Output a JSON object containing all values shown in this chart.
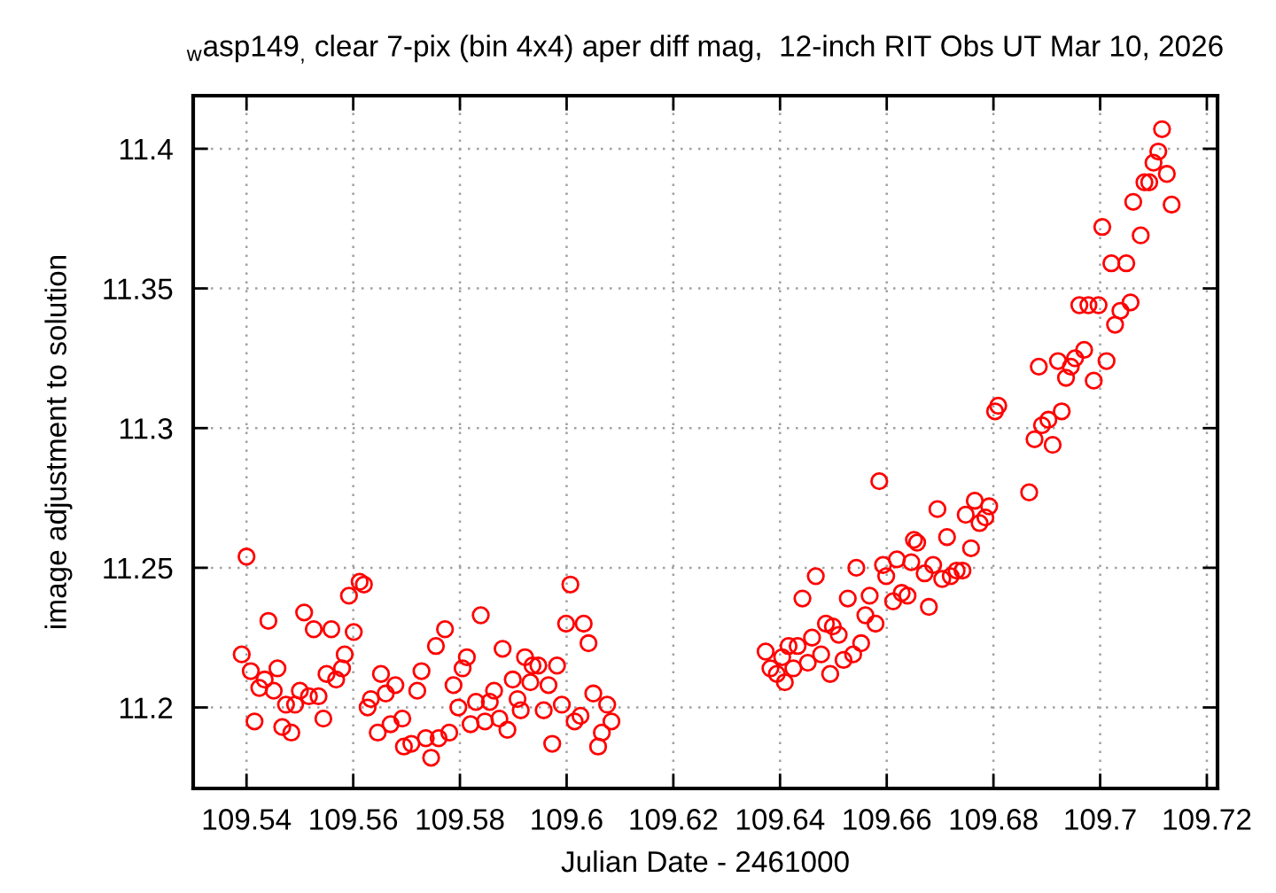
{
  "chart_data": {
    "type": "scatter",
    "title": "$_{w}$asp149$_{,}$ clear 7-pix (bin 4x4) aper diff mag,  12-inch RIT Obs UT Mar 10, 2026",
    "xlabel": "Julian Date - 2461000",
    "ylabel": "image adjustment to solution",
    "x": [
      109.54,
      109.5612,
      109.562,
      109.5592,
      109.5441,
      109.5508,
      109.5526,
      109.5559,
      109.5601,
      109.5391,
      109.5584,
      109.5408,
      109.5458,
      109.5434,
      109.5424,
      109.5451,
      109.555,
      109.5579,
      109.5568,
      109.55,
      109.5517,
      109.5535,
      109.5474,
      109.5491,
      109.5415,
      109.5467,
      109.5484,
      109.5544,
      109.5652,
      109.5679,
      109.5661,
      109.5633,
      109.5627,
      109.567,
      109.5646,
      109.5692,
      109.572,
      109.6007,
      109.5839,
      109.5772,
      109.5755,
      109.5999,
      109.6032,
      109.6041,
      109.588,
      109.5813,
      109.5805,
      109.5728,
      109.5922,
      109.5936,
      109.5947,
      109.5982,
      109.5899,
      109.5932,
      109.5966,
      109.5788,
      109.5864,
      109.5908,
      109.583,
      109.5856,
      109.5797,
      109.5991,
      109.605,
      109.6076,
      109.5914,
      109.5957,
      109.6026,
      109.6015,
      109.6084,
      109.582,
      109.5847,
      109.5874,
      109.5889,
      109.578,
      109.576,
      109.5736,
      109.5709,
      109.5695,
      109.5746,
      109.5973,
      109.6066,
      109.6059,
      109.6586,
      109.6765,
      109.6792,
      109.6695,
      109.6748,
      109.6785,
      109.6774,
      109.6713,
      109.6758,
      109.6651,
      109.6657,
      109.6619,
      109.6646,
      109.6593,
      109.6599,
      109.6543,
      109.6467,
      109.6671,
      109.6687,
      109.6704,
      109.672,
      109.6731,
      109.6742,
      109.6442,
      109.6527,
      109.6568,
      109.6612,
      109.6628,
      109.6639,
      109.6679,
      109.656,
      109.6579,
      109.6486,
      109.6499,
      109.651,
      109.646,
      109.6416,
      109.6433,
      109.6373,
      109.6404,
      109.6477,
      109.6552,
      109.6537,
      109.6519,
      109.6382,
      109.6394,
      109.6409,
      109.6425,
      109.6452,
      109.6494,
      109.7116,
      109.7109,
      109.71,
      109.7125,
      109.7083,
      109.7092,
      109.7062,
      109.7134,
      109.7076,
      109.7004,
      109.7021,
      109.7049,
      109.6961,
      109.6978,
      109.6997,
      109.7057,
      109.7038,
      109.7028,
      109.697,
      109.6953,
      109.6945,
      109.6921,
      109.6885,
      109.6936,
      109.7012,
      109.6988,
      109.6928,
      109.6903,
      109.6891,
      109.6877,
      109.6911,
      109.6809,
      109.6803,
      109.6867
    ],
    "series": [
      {
        "color": "#ff0000",
        "values": [
          11.254,
          11.245,
          11.244,
          11.24,
          11.231,
          11.234,
          11.228,
          11.228,
          11.227,
          11.219,
          11.219,
          11.213,
          11.214,
          11.21,
          11.207,
          11.206,
          11.212,
          11.214,
          11.21,
          11.206,
          11.204,
          11.204,
          11.201,
          11.201,
          11.195,
          11.193,
          11.191,
          11.196,
          11.212,
          11.208,
          11.205,
          11.203,
          11.2,
          11.194,
          11.191,
          11.196,
          11.206,
          11.244,
          11.233,
          11.228,
          11.222,
          11.23,
          11.23,
          11.223,
          11.221,
          11.218,
          11.214,
          11.213,
          11.218,
          11.215,
          11.215,
          11.215,
          11.21,
          11.209,
          11.208,
          11.208,
          11.206,
          11.203,
          11.202,
          11.202,
          11.2,
          11.201,
          11.205,
          11.201,
          11.199,
          11.199,
          11.197,
          11.195,
          11.195,
          11.194,
          11.195,
          11.196,
          11.192,
          11.191,
          11.189,
          11.189,
          11.187,
          11.186,
          11.182,
          11.187,
          11.191,
          11.186,
          11.281,
          11.274,
          11.272,
          11.271,
          11.269,
          11.268,
          11.266,
          11.261,
          11.257,
          11.26,
          11.259,
          11.253,
          11.252,
          11.251,
          11.247,
          11.25,
          11.247,
          11.248,
          11.251,
          11.246,
          11.247,
          11.249,
          11.249,
          11.239,
          11.239,
          11.24,
          11.238,
          11.241,
          11.24,
          11.236,
          11.233,
          11.23,
          11.23,
          11.229,
          11.226,
          11.225,
          11.222,
          11.222,
          11.22,
          11.218,
          11.219,
          11.223,
          11.219,
          11.217,
          11.214,
          11.212,
          11.209,
          11.214,
          11.216,
          11.212,
          11.407,
          11.399,
          11.395,
          11.391,
          11.388,
          11.388,
          11.381,
          11.38,
          11.369,
          11.372,
          11.359,
          11.359,
          11.344,
          11.344,
          11.344,
          11.345,
          11.342,
          11.337,
          11.328,
          11.325,
          11.322,
          11.324,
          11.322,
          11.318,
          11.324,
          11.317,
          11.306,
          11.303,
          11.301,
          11.296,
          11.294,
          11.308,
          11.306,
          11.277
        ]
      }
    ],
    "marker": "circle",
    "grid": true,
    "xlim": [
      109.53,
      109.722
    ],
    "xticks": [
      109.54,
      109.56,
      109.58,
      109.6,
      109.62,
      109.64,
      109.66,
      109.68,
      109.7,
      109.72
    ],
    "ylim": [
      11.171,
      11.419
    ],
    "yticks": [
      11.2,
      11.25,
      11.3,
      11.35,
      11.4
    ]
  }
}
